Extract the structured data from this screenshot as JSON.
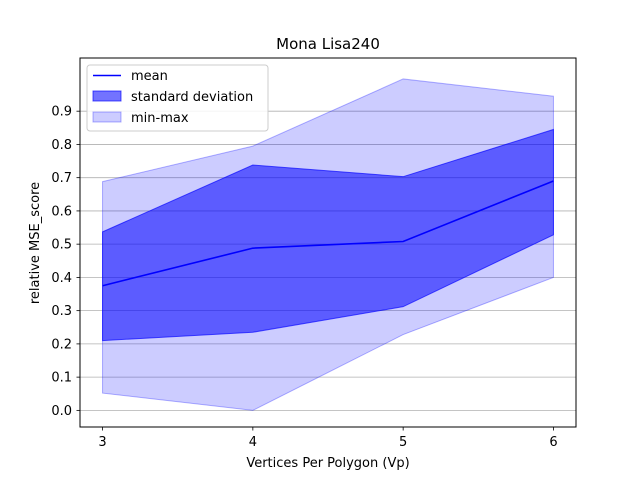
{
  "chart_data": {
    "type": "area",
    "title": "Mona Lisa240",
    "xlabel": "Vertices Per Polygon (Vp)",
    "ylabel": "relative MSE_score",
    "x": [
      3,
      4,
      5,
      6
    ],
    "xticks": [
      "3",
      "4",
      "5",
      "6"
    ],
    "yticks": [
      "0.0",
      "0.1",
      "0.2",
      "0.3",
      "0.4",
      "0.5",
      "0.6",
      "0.7",
      "0.8",
      "0.9"
    ],
    "xlim": [
      2.85,
      6.15
    ],
    "ylim": [
      -0.05,
      1.06
    ],
    "grid": "horizontal",
    "legend_position": "top-left",
    "series": [
      {
        "name": "mean",
        "kind": "line",
        "color": "#0000ff",
        "values": [
          0.375,
          0.488,
          0.508,
          0.69
        ]
      },
      {
        "name": "standard deviation",
        "kind": "band",
        "color": "#0000ff",
        "opacity": 0.55,
        "lower": [
          0.21,
          0.235,
          0.312,
          0.528
        ],
        "upper": [
          0.537,
          0.738,
          0.703,
          0.845
        ]
      },
      {
        "name": "min-max",
        "kind": "band",
        "color": "#0000ff",
        "opacity": 0.2,
        "lower": [
          0.052,
          0.0,
          0.228,
          0.4
        ],
        "upper": [
          0.688,
          0.795,
          0.997,
          0.945
        ]
      }
    ],
    "legend": [
      "mean",
      "standard deviation",
      "min-max"
    ]
  }
}
